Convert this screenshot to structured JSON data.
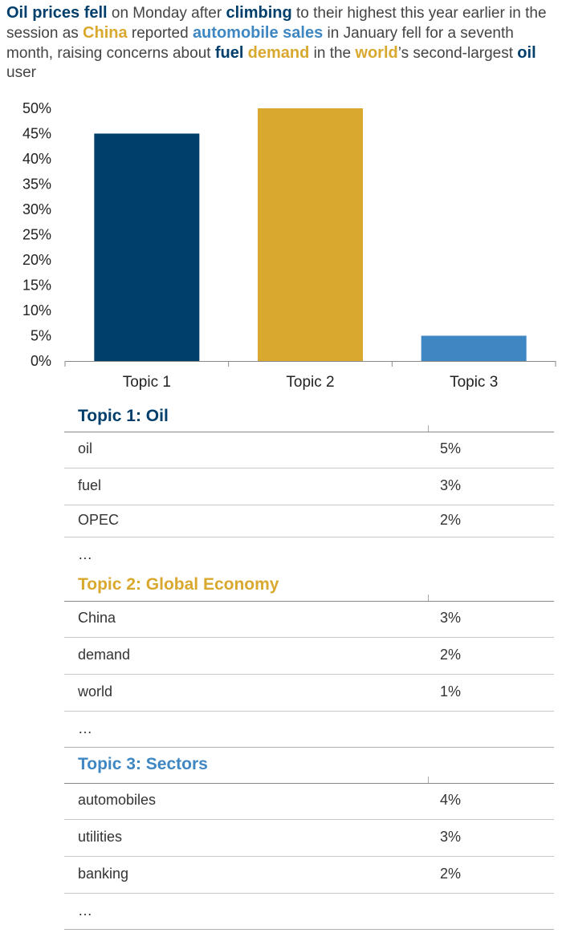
{
  "headline": [
    {
      "text": "Oil prices fell",
      "kw": "dark"
    },
    {
      "text": " on Monday after "
    },
    {
      "text": "climbing",
      "kw": "dark"
    },
    {
      "text": " to their highest this year earlier in the session as "
    },
    {
      "text": "China",
      "kw": "gold"
    },
    {
      "text": " reported "
    },
    {
      "text": "automobile sales",
      "kw": "blue"
    },
    {
      "text": " in January fell for a seventh month, raising concerns about "
    },
    {
      "text": "fuel",
      "kw": "dark"
    },
    {
      "text": " "
    },
    {
      "text": "demand",
      "kw": "gold"
    },
    {
      "text": " in the "
    },
    {
      "text": "world",
      "kw": "gold"
    },
    {
      "text": "’s second-largest "
    },
    {
      "text": "oil",
      "kw": "dark"
    },
    {
      "text": " user"
    }
  ],
  "colors": {
    "dark": "#003e6b",
    "gold": "#d9a82e",
    "blue": "#3f87c2"
  },
  "chart_data": {
    "type": "bar",
    "categories": [
      "Topic 1",
      "Topic 2",
      "Topic 3"
    ],
    "values": [
      45,
      50,
      5
    ],
    "value_format": "percent",
    "bar_colors": [
      "#003e6b",
      "#d9a82e",
      "#3f87c2"
    ],
    "ylim": [
      0,
      50
    ],
    "yticks": [
      "0%",
      "5%",
      "10%",
      "15%",
      "20%",
      "25%",
      "30%",
      "35%",
      "40%",
      "45%",
      "50%"
    ],
    "grid": false,
    "legend": "none"
  },
  "topics": [
    {
      "title": "Topic 1: Oil",
      "color": "#003e6b",
      "rows": [
        {
          "term": "oil",
          "value": "5%"
        },
        {
          "term": "fuel",
          "value": "3%"
        },
        {
          "term": "OPEC",
          "value": "2%"
        },
        {
          "term": "…",
          "value": ""
        }
      ]
    },
    {
      "title": "Topic 2: Global Economy",
      "color": "#d9a82e",
      "rows": [
        {
          "term": "China",
          "value": "3%"
        },
        {
          "term": "demand",
          "value": "2%"
        },
        {
          "term": "world",
          "value": "1%"
        },
        {
          "term": "…",
          "value": ""
        }
      ]
    },
    {
      "title": "Topic 3: Sectors",
      "color": "#3f87c2",
      "rows": [
        {
          "term": "automobiles",
          "value": "4%"
        },
        {
          "term": "utilities",
          "value": "3%"
        },
        {
          "term": "banking",
          "value": "2%"
        },
        {
          "term": "…",
          "value": ""
        }
      ]
    }
  ]
}
